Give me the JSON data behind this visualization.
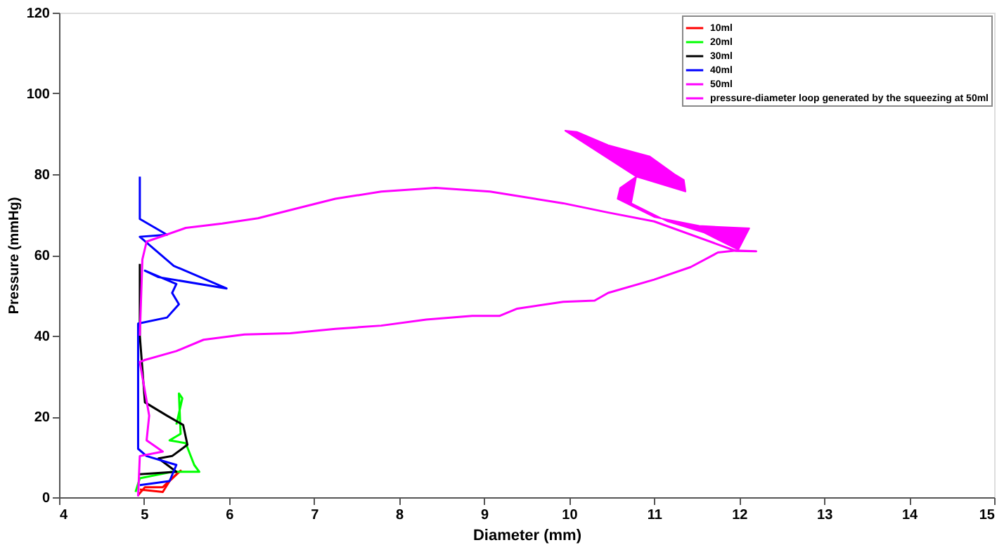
{
  "chart_data": {
    "type": "line",
    "xlabel": "Diameter (mm)",
    "ylabel": "Pressure (mmHg)",
    "xlim": [
      4,
      15
    ],
    "xticks": [
      4,
      5,
      6,
      7,
      8,
      9,
      10,
      11,
      12,
      13,
      14,
      15
    ],
    "ylim": [
      0,
      120
    ],
    "yticks": [
      0,
      20,
      40,
      60,
      80,
      100,
      120
    ],
    "grid": false,
    "legend": "top right",
    "line_style": "solid",
    "marker": "none",
    "series": [
      {
        "name": "10ml",
        "color": "#ff0000",
        "x": [
          4.93,
          5.01,
          5.22,
          5.38,
          5.43,
          5.3,
          5.22,
          4.95
        ],
        "values": [
          0.5,
          2.5,
          2.5,
          5.7,
          6.6,
          4,
          1.3,
          1.9
        ]
      },
      {
        "name": "20ml",
        "color": "#00ff00",
        "x": [
          4.9,
          4.95,
          5.33,
          5.65,
          5.59,
          5.49,
          5.3,
          5.43,
          5.41,
          5.45,
          5.38
        ],
        "values": [
          1.3,
          4.7,
          6.3,
          6.3,
          8.0,
          13.4,
          14.1,
          15.7,
          25.7,
          24.5,
          18
        ]
      },
      {
        "name": "30ml",
        "color": "#000000",
        "x": [
          4.95,
          5.38,
          5.17,
          5.33,
          5.51,
          5.46,
          5.27,
          5.01,
          4.95,
          4.95
        ],
        "values": [
          5.7,
          6.3,
          9.6,
          10.2,
          13.0,
          17.9,
          20.2,
          23.5,
          40,
          57.8
        ]
      },
      {
        "name": "40ml",
        "color": "#0000ff",
        "x": [
          4.95,
          5.3,
          5.38,
          5.03,
          4.93,
          4.93,
          5.27,
          5.41,
          5.33,
          5.38,
          5.01,
          5.17,
          5.97,
          5.35,
          4.95,
          5.27,
          4.95,
          4.95
        ],
        "values": [
          3,
          4,
          8,
          10.2,
          12,
          43,
          44.5,
          47.8,
          50.6,
          52.8,
          56.1,
          54.5,
          51.7,
          57.3,
          64.5,
          65.0,
          68.9,
          79.4
        ]
      },
      {
        "name": "50ml",
        "color": "#ff00ff",
        "x": [
          4.93,
          4.95,
          5.22,
          5.03,
          5.06,
          4.95,
          5.01,
          5.38,
          5.7,
          6.18,
          6.72,
          7.25,
          7.79,
          8.32,
          8.86,
          9.18,
          9.39,
          9.93,
          10.3,
          10.46,
          11.0,
          11.43,
          11.75,
          11.96,
          12.2,
          11.96,
          11.0,
          10.46,
          9.93,
          9.07,
          8.43,
          7.79,
          7.25,
          6.83,
          6.34,
          5.92,
          5.49,
          5.22,
          5.03,
          4.98,
          4.95
        ],
        "values": [
          0.2,
          10.2,
          11.3,
          14.1,
          20.2,
          33.5,
          34.0,
          36.2,
          39.0,
          40.3,
          40.6,
          41.7,
          42.5,
          44.0,
          44.9,
          44.9,
          46.7,
          48.4,
          48.7,
          50.6,
          53.9,
          57.0,
          60.6,
          61.1,
          60.9,
          61.0,
          68.3,
          70.5,
          72.8,
          75.7,
          76.6,
          75.7,
          73.9,
          71.7,
          69.1,
          67.8,
          66.7,
          64.7,
          63.3,
          58.9,
          40
        ]
      },
      {
        "name": "pressure-diameter loop generated by the squeezing at 50ml",
        "color": "#ff00ff",
        "type": "area",
        "x": [
          9.95,
          10.09,
          10.46,
          10.95,
          11.24,
          11.35,
          11.37,
          10.79,
          10.6,
          10.57,
          11.0,
          11.53,
          12.12,
          11.99,
          11.59,
          11.16,
          10.73,
          10.79,
          9.95
        ],
        "values": [
          90.8,
          90.5,
          87.2,
          84.4,
          80.0,
          78.6,
          75.7,
          79.4,
          76.6,
          73.9,
          69.4,
          67.2,
          66.6,
          61.3,
          65.5,
          68.3,
          72.8,
          79.4,
          90.8
        ]
      }
    ]
  }
}
